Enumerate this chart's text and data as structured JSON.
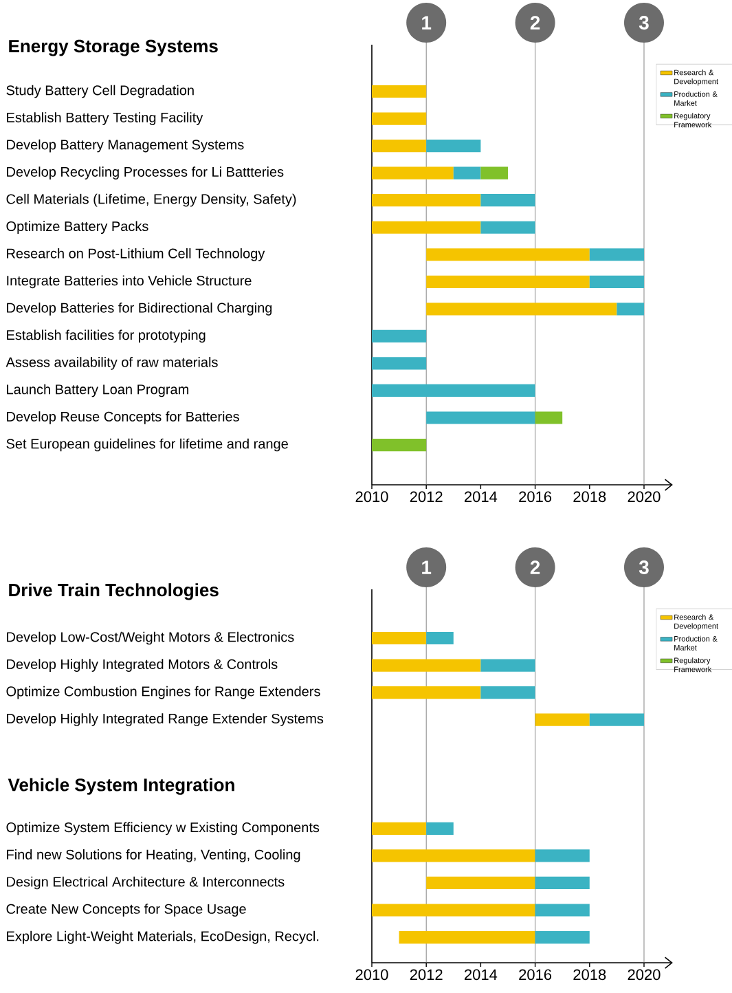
{
  "chart_data": [
    {
      "type": "bar",
      "orientation": "horizontal",
      "title": "Energy Storage Systems",
      "categories": [
        "Study Battery Cell Degradation",
        "Establish Battery Testing Facility",
        "Develop Battery Management Systems",
        "Develop Recycling Processes for Li Battteries",
        "Cell Materials (Lifetime, Energy Density, Safety)",
        "Optimize Battery Packs",
        "Research on Post-Lithium Cell Technology",
        "Integrate Batteries into Vehicle Structure",
        "Develop Batteries for Bidirectional Charging",
        "Establish facilities for prototyping",
        "Assess availability of raw materials",
        "Launch Battery Loan Program",
        "Develop Reuse Concepts for Batteries",
        "Set European guidelines for lifetime and range"
      ],
      "series": [
        {
          "name": "Research & Development",
          "color": "#f5c400",
          "base": [
            2010,
            2010,
            2010,
            2010,
            2010,
            2010,
            2012,
            2012,
            2012,
            null,
            null,
            null,
            null,
            null
          ],
          "values": [
            2,
            2,
            2,
            3,
            4,
            4,
            6,
            6,
            7,
            null,
            null,
            null,
            null,
            null
          ]
        },
        {
          "name": "Production & Market",
          "color": "#3bb3c3",
          "base": [
            null,
            null,
            2012,
            2013,
            2014,
            2014,
            2018,
            2018,
            2019,
            2010,
            2010,
            2010,
            2012,
            null
          ],
          "values": [
            null,
            null,
            2,
            1,
            2,
            2,
            2,
            2,
            1,
            2,
            2,
            6,
            4,
            null
          ]
        },
        {
          "name": "Regulatory Framework",
          "color": "#80c12a",
          "base": [
            null,
            null,
            null,
            2014,
            null,
            null,
            null,
            null,
            null,
            null,
            null,
            null,
            2016,
            2010
          ],
          "values": [
            null,
            null,
            null,
            1,
            null,
            null,
            null,
            null,
            null,
            null,
            null,
            null,
            1,
            2
          ]
        }
      ],
      "xlim": [
        2010,
        2021
      ],
      "xticks": [
        2010,
        2012,
        2014,
        2016,
        2018,
        2020
      ],
      "ref_lines": [
        {
          "axis": "x",
          "value": 2012
        },
        {
          "axis": "x",
          "value": 2016
        },
        {
          "axis": "x",
          "value": 2020
        }
      ],
      "annotations": [
        "1",
        "2",
        "3"
      ],
      "legend": "top right"
    },
    {
      "type": "bar",
      "orientation": "horizontal",
      "title": "Drive Train Technologies",
      "categories": [
        "Develop Low-Cost/Weight Motors & Electronics",
        "Develop Highly Integrated Motors & Controls",
        "Optimize Combustion Engines for Range Extenders",
        "Develop Highly Integrated Range Extender Systems",
        null,
        null,
        null,
        "Optimize System Efficiency w Existing Components",
        "Find new Solutions for Heating, Venting, Cooling",
        "Design Electrical Architecture & Interconnects",
        "Create New Concepts for Space Usage",
        "Explore Light-Weight Materials, EcoDesign, Recycl."
      ],
      "series": [
        {
          "name": "Research & Development",
          "color": "#f5c400",
          "base": [
            2010,
            2010,
            2010,
            2016,
            null,
            null,
            null,
            2010,
            2010,
            2012,
            2010,
            2011
          ],
          "values": [
            2,
            4,
            4,
            2,
            null,
            null,
            null,
            2,
            6,
            4,
            6,
            5
          ]
        },
        {
          "name": "Production & Market",
          "color": "#3bb3c3",
          "base": [
            2012,
            2014,
            2014,
            2018,
            null,
            null,
            null,
            2012,
            2016,
            2016,
            2016,
            2016
          ],
          "values": [
            1,
            2,
            2,
            2,
            null,
            null,
            null,
            1,
            2,
            2,
            2,
            2
          ]
        },
        {
          "name": "Regulatory Framework",
          "color": "#80c12a",
          "base": [
            null,
            null,
            null,
            null,
            null,
            null,
            null,
            null,
            null,
            null,
            null,
            null
          ],
          "values": [
            null,
            null,
            null,
            null,
            null,
            null,
            null,
            null,
            null,
            null,
            null,
            null
          ]
        }
      ],
      "xlim": [
        2010,
        2021
      ],
      "xticks": [
        2010,
        2012,
        2014,
        2016,
        2018,
        2020
      ],
      "ref_lines": [
        {
          "axis": "x",
          "value": 2012
        },
        {
          "axis": "x",
          "value": 2016
        },
        {
          "axis": "x",
          "value": 2020
        }
      ],
      "annotations": [
        "1",
        "2",
        "3",
        "Vehicle System Integration"
      ],
      "legend": "top right"
    }
  ]
}
